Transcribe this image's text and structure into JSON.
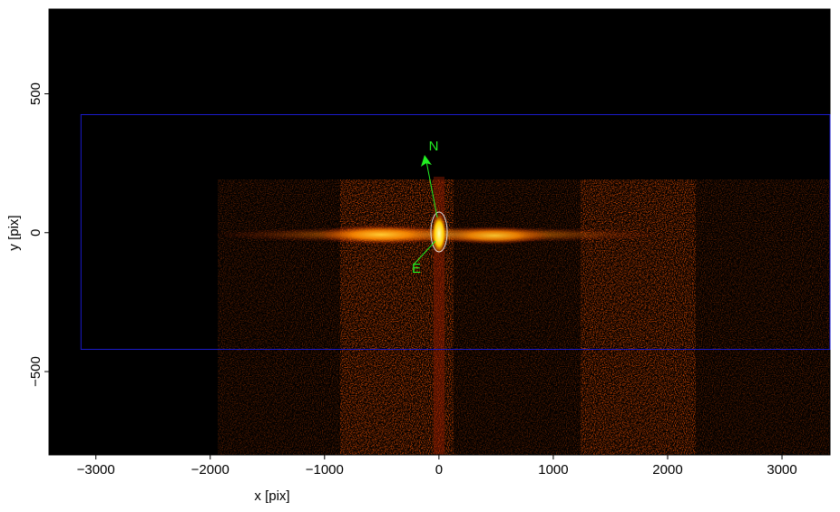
{
  "chart_data": {
    "type": "image",
    "xlabel": "x [pix]",
    "ylabel": "y [pix]",
    "xlim": [
      -3410,
      3420
    ],
    "ylim": [
      -800,
      805
    ],
    "xticks": [
      {
        "value": -3000,
        "label": "−3000"
      },
      {
        "value": -2000,
        "label": "−2000"
      },
      {
        "value": -1000,
        "label": "−1000"
      },
      0,
      1000,
      2000,
      3000
    ],
    "yticks": [
      {
        "value": -500,
        "label": "−500"
      },
      0,
      500
    ],
    "region": {
      "x": [
        -3130,
        3420
      ],
      "y": [
        -420,
        425
      ],
      "color": "#1a1acc"
    },
    "annotations": [
      "N",
      "E"
    ],
    "annotation_color": "#22ee22"
  }
}
